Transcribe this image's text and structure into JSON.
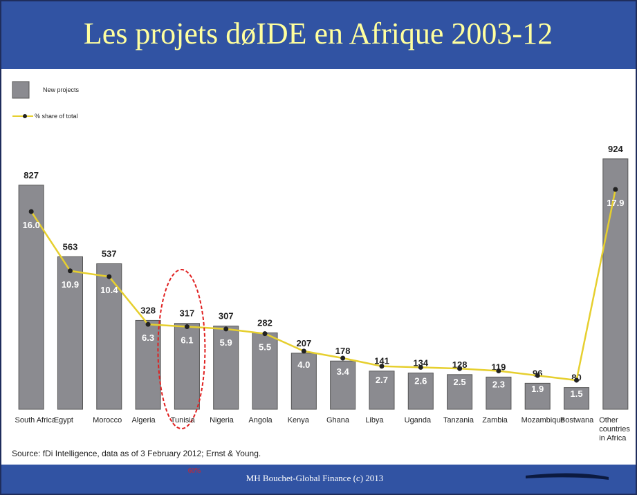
{
  "title": "Les projets døIDE en Afrique 2003-12",
  "footer": "MH Bouchet-Global Finance (c) 2013",
  "annotation": "60%",
  "chart_data": {
    "type": "bar",
    "source": "Source: fDi Intelligence, data as of 3 February 2012; Ernst & Young.",
    "categories": [
      "South Africa",
      "Egypt",
      "Morocco",
      "Algeria",
      "Tunisia",
      "Nigeria",
      "Angola",
      "Kenya",
      "Ghana",
      "Libya",
      "Uganda",
      "Tanzania",
      "Zambia",
      "Mozambique",
      "Bostwana",
      "Other countries in Africa"
    ],
    "series": [
      {
        "name": "New projects",
        "color": "#8b8b90",
        "values": [
          827,
          563,
          537,
          328,
          317,
          307,
          282,
          207,
          178,
          141,
          134,
          128,
          119,
          96,
          80,
          924
        ]
      },
      {
        "name": "% share of total",
        "color": "#e6cf2e",
        "axis": "y2",
        "type": "line",
        "values": [
          16.0,
          10.9,
          10.4,
          6.3,
          6.1,
          5.9,
          5.5,
          4.0,
          3.4,
          2.7,
          2.6,
          2.5,
          2.3,
          1.9,
          1.5,
          17.9
        ],
        "value_labels": [
          "16.0",
          "10.9",
          "10.4",
          "6.3",
          "6.1",
          "5.9",
          "5.5",
          "4.0",
          "3.4",
          "2.7",
          "2.6",
          "2.5",
          "2.3",
          "1.9",
          "1.5",
          "17.9"
        ]
      }
    ],
    "ylim": [
      0,
      1000
    ],
    "y2lim": [
      -1,
      22.3
    ]
  }
}
